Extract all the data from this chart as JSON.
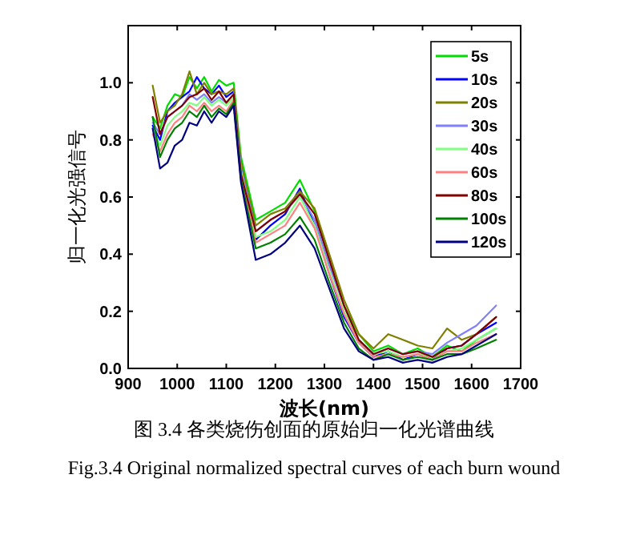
{
  "chart_data": {
    "type": "line",
    "xlabel": "波长(nm)",
    "ylabel": "归一化光强信号",
    "annotations": [
      "图 3.4 各类烧伤创面的原始归一化光谱曲线",
      "Fig.3.4 Original normalized spectral curves of each burn wound"
    ],
    "x": [
      950,
      965,
      980,
      995,
      1010,
      1025,
      1040,
      1055,
      1070,
      1085,
      1100,
      1115,
      1130,
      1160,
      1190,
      1220,
      1250,
      1280,
      1310,
      1340,
      1370,
      1400,
      1430,
      1460,
      1490,
      1520,
      1550,
      1580,
      1610,
      1650
    ],
    "xlim": [
      900,
      1700
    ],
    "xticks": [
      900,
      1000,
      1100,
      1200,
      1300,
      1400,
      1500,
      1600,
      1700
    ],
    "ylim": [
      0,
      1.2
    ],
    "yticks": [
      {
        "value": 0,
        "label": "0.0"
      },
      0.2,
      0.4,
      0.6,
      0.8,
      {
        "value": 1,
        "label": "1.0"
      }
    ],
    "grid": false,
    "legend": "top right",
    "marker": "none",
    "line_style": "solid",
    "series": [
      {
        "name": "5s",
        "color": "#00dd00",
        "values": [
          0.88,
          0.84,
          0.92,
          0.96,
          0.95,
          1.02,
          0.98,
          1.02,
          0.97,
          1.01,
          0.99,
          1.0,
          0.74,
          0.52,
          0.55,
          0.58,
          0.66,
          0.55,
          0.38,
          0.22,
          0.12,
          0.06,
          0.08,
          0.05,
          0.07,
          0.04,
          0.08,
          0.06,
          0.1,
          0.14
        ]
      },
      {
        "name": "10s",
        "color": "#0000ff",
        "values": [
          0.85,
          0.8,
          0.9,
          0.93,
          0.95,
          0.97,
          1.02,
          0.98,
          0.96,
          0.99,
          0.95,
          0.97,
          0.7,
          0.45,
          0.5,
          0.54,
          0.63,
          0.5,
          0.33,
          0.18,
          0.09,
          0.04,
          0.06,
          0.03,
          0.05,
          0.03,
          0.07,
          0.08,
          0.12,
          0.16
        ]
      },
      {
        "name": "20s",
        "color": "#808000",
        "values": [
          0.99,
          0.86,
          0.9,
          0.92,
          0.96,
          1.04,
          0.96,
          1.0,
          0.96,
          0.97,
          0.96,
          0.98,
          0.72,
          0.5,
          0.54,
          0.56,
          0.62,
          0.56,
          0.4,
          0.24,
          0.12,
          0.07,
          0.12,
          0.1,
          0.08,
          0.07,
          0.14,
          0.1,
          0.12,
          0.18
        ]
      },
      {
        "name": "30s",
        "color": "#8080ff",
        "values": [
          0.86,
          0.82,
          0.88,
          0.9,
          0.92,
          0.96,
          0.94,
          0.96,
          0.93,
          0.95,
          0.93,
          0.96,
          0.7,
          0.48,
          0.52,
          0.55,
          0.61,
          0.52,
          0.36,
          0.22,
          0.1,
          0.05,
          0.07,
          0.05,
          0.06,
          0.05,
          0.09,
          0.12,
          0.15,
          0.22
        ]
      },
      {
        "name": "40s",
        "color": "#80ff80",
        "values": [
          0.84,
          0.78,
          0.85,
          0.88,
          0.9,
          0.93,
          0.92,
          0.95,
          0.92,
          0.94,
          0.92,
          0.95,
          0.69,
          0.46,
          0.48,
          0.52,
          0.6,
          0.5,
          0.34,
          0.2,
          0.1,
          0.05,
          0.06,
          0.04,
          0.05,
          0.04,
          0.06,
          0.07,
          0.1,
          0.14
        ]
      },
      {
        "name": "60s",
        "color": "#ff8080",
        "values": [
          0.82,
          0.76,
          0.82,
          0.86,
          0.88,
          0.92,
          0.9,
          0.93,
          0.9,
          0.92,
          0.9,
          0.94,
          0.67,
          0.44,
          0.47,
          0.5,
          0.58,
          0.49,
          0.33,
          0.19,
          0.09,
          0.04,
          0.05,
          0.04,
          0.05,
          0.03,
          0.06,
          0.06,
          0.09,
          0.12
        ]
      },
      {
        "name": "80s",
        "color": "#800000",
        "values": [
          0.95,
          0.82,
          0.88,
          0.9,
          0.92,
          0.95,
          0.96,
          0.98,
          0.94,
          0.97,
          0.93,
          0.96,
          0.68,
          0.48,
          0.52,
          0.55,
          0.61,
          0.54,
          0.38,
          0.22,
          0.1,
          0.05,
          0.07,
          0.05,
          0.06,
          0.04,
          0.07,
          0.08,
          0.12,
          0.18
        ]
      },
      {
        "name": "100s",
        "color": "#008000",
        "values": [
          0.88,
          0.74,
          0.8,
          0.84,
          0.86,
          0.9,
          0.88,
          0.92,
          0.88,
          0.91,
          0.89,
          0.93,
          0.66,
          0.42,
          0.44,
          0.47,
          0.53,
          0.45,
          0.3,
          0.16,
          0.07,
          0.03,
          0.05,
          0.03,
          0.04,
          0.03,
          0.05,
          0.05,
          0.07,
          0.1
        ]
      },
      {
        "name": "120s",
        "color": "#000080",
        "values": [
          0.84,
          0.7,
          0.72,
          0.78,
          0.8,
          0.86,
          0.85,
          0.9,
          0.86,
          0.9,
          0.88,
          0.92,
          0.65,
          0.38,
          0.4,
          0.44,
          0.5,
          0.42,
          0.28,
          0.14,
          0.06,
          0.03,
          0.04,
          0.02,
          0.03,
          0.02,
          0.04,
          0.05,
          0.08,
          0.12
        ]
      }
    ]
  }
}
